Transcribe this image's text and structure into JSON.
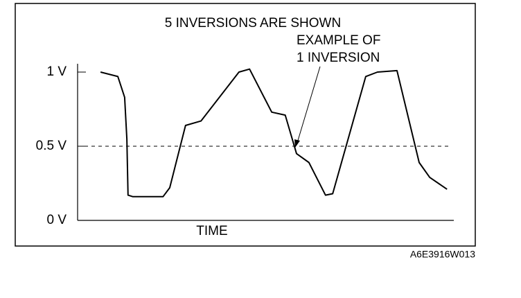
{
  "chart_data": {
    "type": "line",
    "title": "5 INVERSIONS ARE SHOWN",
    "annotation": [
      "EXAMPLE OF",
      "1 INVERSION"
    ],
    "x_label": "TIME",
    "caption": "A6E3916W013",
    "x": [
      6.1,
      10.7,
      12.5,
      13.1,
      13.4,
      14.7,
      22.7,
      24.5,
      28.7,
      32.8,
      42.9,
      45.7,
      51.6,
      55.2,
      58.2,
      61.5,
      65.9,
      67.8,
      76.6,
      79.7,
      84.9,
      90.8,
      93.6,
      98.2
    ],
    "series": [
      {
        "color": "#000000",
        "values": [
          1.0,
          0.97,
          0.83,
          0.55,
          0.17,
          0.16,
          0.16,
          0.22,
          0.64,
          0.67,
          1.0,
          1.02,
          0.73,
          0.71,
          0.45,
          0.39,
          0.17,
          0.18,
          0.97,
          1.0,
          1.01,
          0.39,
          0.29,
          0.21
        ]
      }
    ],
    "xlim": [
      0,
      100
    ],
    "ylim": [
      0,
      1
    ],
    "yticks": [
      {
        "value": 0,
        "label": "0 V"
      },
      {
        "value": 0.5,
        "label": "0.5 V"
      },
      {
        "value": 1,
        "label": "1 V"
      }
    ],
    "reference_line": 0.5
  }
}
